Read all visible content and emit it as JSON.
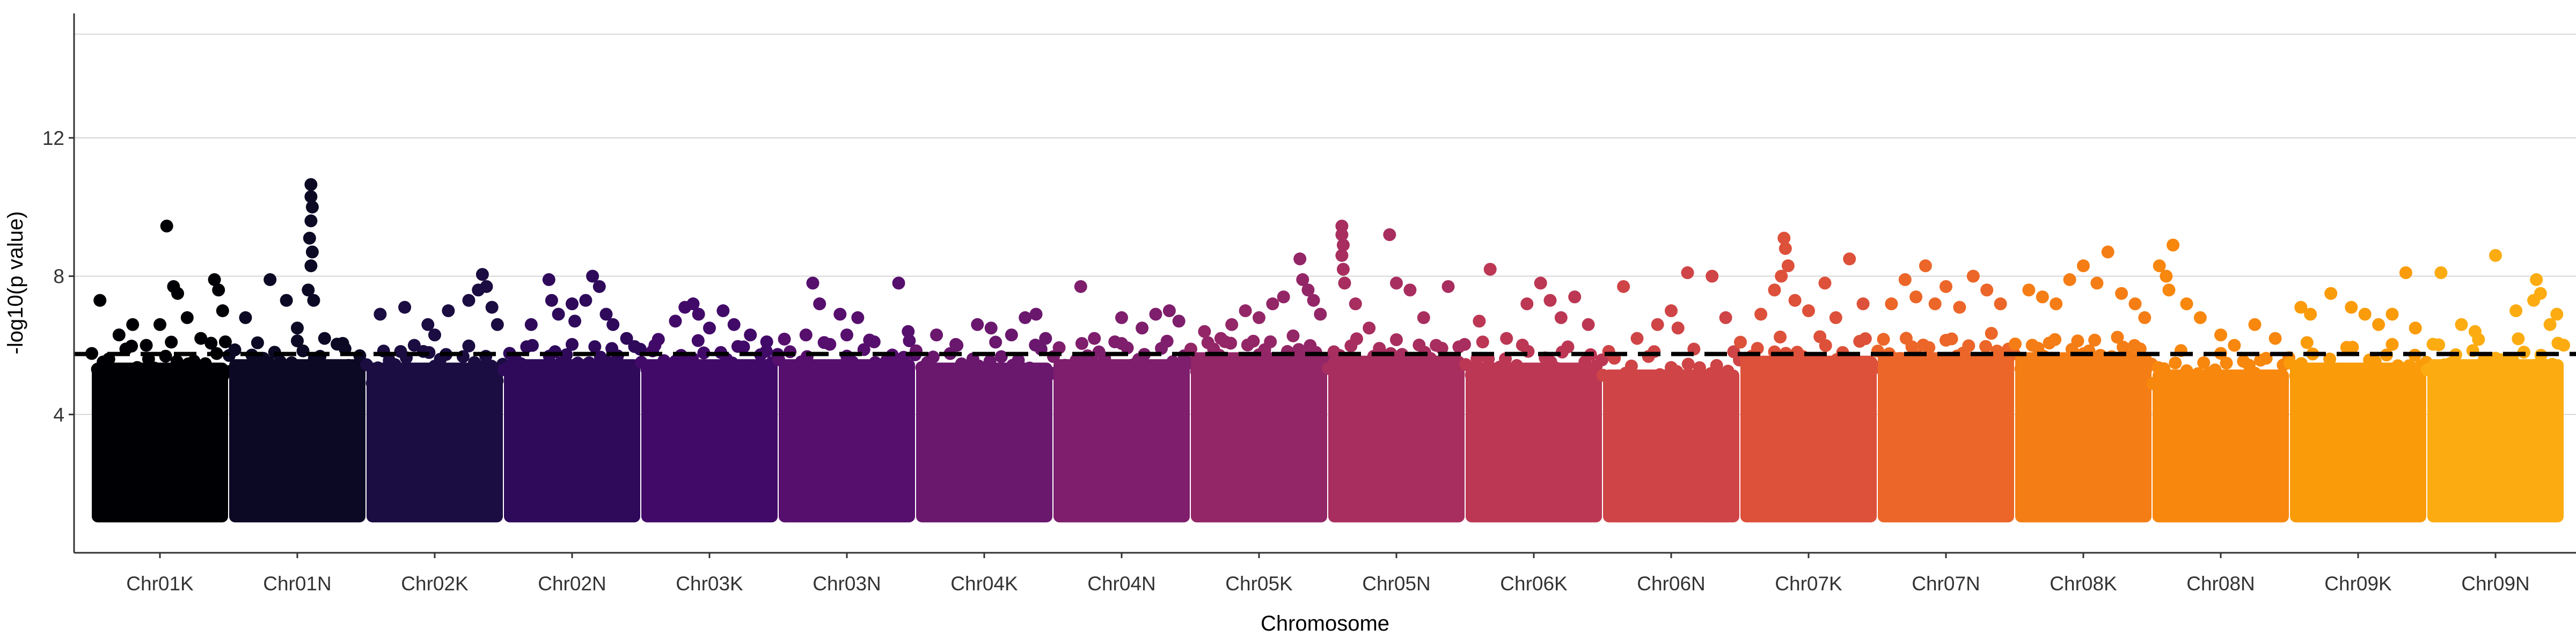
{
  "chart_data": {
    "type": "scatter",
    "subtype": "manhattan",
    "title": "",
    "xlabel": "Chromosome",
    "ylabel": "-log10(p value)",
    "ylim": [
      0,
      15.6
    ],
    "yticks": [
      4,
      8,
      12
    ],
    "threshold": 5.75,
    "grid": "horizontal-major",
    "legend": "none",
    "categories": [
      "Chr01K",
      "Chr01N",
      "Chr02K",
      "Chr02N",
      "Chr03K",
      "Chr03N",
      "Chr04K",
      "Chr04N",
      "Chr05K",
      "Chr05N",
      "Chr06K",
      "Chr06N",
      "Chr07K",
      "Chr07N",
      "Chr08K",
      "Chr08N",
      "Chr09K",
      "Chr09N"
    ],
    "colors": [
      "#000004",
      "#0b0924",
      "#1b0c41",
      "#2f0a5b",
      "#420a68",
      "#560f6d",
      "#6a176e",
      "#7e1e6c",
      "#932667",
      "#a82e5f",
      "#bc3754",
      "#cf4446",
      "#dd513a",
      "#eb6628",
      "#f57d15",
      "#f8870e",
      "#fa9b0a",
      "#fcac11"
    ],
    "series": [
      {
        "name": "Chr01K",
        "baseline_top": 5.5,
        "peak": 9.5,
        "points": [
          [
            0.06,
            7.3
          ],
          [
            0.55,
            9.45
          ],
          [
            0.2,
            6.3
          ],
          [
            0.3,
            6.6
          ],
          [
            0.6,
            7.7
          ],
          [
            0.63,
            7.5
          ],
          [
            0.7,
            6.8
          ],
          [
            0.9,
            7.9
          ],
          [
            0.93,
            7.6
          ],
          [
            0.96,
            7.0
          ],
          [
            0.98,
            6.1
          ],
          [
            0.5,
            6.6
          ],
          [
            0.8,
            6.2
          ],
          [
            0.4,
            6.0
          ]
        ]
      },
      {
        "name": "Chr01N",
        "baseline_top": 5.6,
        "peak": 10.7,
        "points": [
          [
            0.12,
            6.8
          ],
          [
            0.3,
            7.9
          ],
          [
            0.42,
            7.3
          ],
          [
            0.6,
            10.65
          ],
          [
            0.6,
            10.3
          ],
          [
            0.61,
            10.0
          ],
          [
            0.6,
            9.6
          ],
          [
            0.59,
            9.1
          ],
          [
            0.61,
            8.7
          ],
          [
            0.6,
            8.3
          ],
          [
            0.58,
            7.6
          ],
          [
            0.62,
            7.3
          ],
          [
            0.7,
            6.2
          ],
          [
            0.85,
            5.9
          ],
          [
            0.5,
            6.5
          ]
        ]
      },
      {
        "name": "Chr02K",
        "baseline_top": 5.5,
        "peak": 8.1,
        "points": [
          [
            0.1,
            6.9
          ],
          [
            0.28,
            7.1
          ],
          [
            0.45,
            6.6
          ],
          [
            0.6,
            7.0
          ],
          [
            0.75,
            7.3
          ],
          [
            0.82,
            7.6
          ],
          [
            0.85,
            8.05
          ],
          [
            0.88,
            7.7
          ],
          [
            0.92,
            7.1
          ],
          [
            0.96,
            6.6
          ],
          [
            0.5,
            6.3
          ],
          [
            0.35,
            6.0
          ]
        ]
      },
      {
        "name": "Chr02N",
        "baseline_top": 5.6,
        "peak": 8.1,
        "points": [
          [
            0.2,
            6.6
          ],
          [
            0.33,
            7.9
          ],
          [
            0.35,
            7.3
          ],
          [
            0.4,
            6.9
          ],
          [
            0.5,
            7.2
          ],
          [
            0.52,
            6.7
          ],
          [
            0.6,
            7.3
          ],
          [
            0.65,
            8.0
          ],
          [
            0.7,
            7.7
          ],
          [
            0.75,
            6.9
          ],
          [
            0.8,
            6.6
          ],
          [
            0.9,
            6.2
          ]
        ]
      },
      {
        "name": "Chr03K",
        "baseline_top": 5.6,
        "peak": 7.5,
        "points": [
          [
            0.1,
            6.0
          ],
          [
            0.25,
            6.7
          ],
          [
            0.32,
            7.1
          ],
          [
            0.38,
            7.2
          ],
          [
            0.42,
            6.9
          ],
          [
            0.5,
            6.5
          ],
          [
            0.6,
            7.0
          ],
          [
            0.68,
            6.6
          ],
          [
            0.8,
            6.3
          ],
          [
            0.92,
            6.1
          ]
        ]
      },
      {
        "name": "Chr03N",
        "baseline_top": 5.6,
        "peak": 7.8,
        "points": [
          [
            0.25,
            7.8
          ],
          [
            0.3,
            7.2
          ],
          [
            0.45,
            6.9
          ],
          [
            0.5,
            6.3
          ],
          [
            0.58,
            6.8
          ],
          [
            0.7,
            6.1
          ],
          [
            0.88,
            7.8
          ],
          [
            0.95,
            6.4
          ],
          [
            0.2,
            6.3
          ]
        ]
      },
      {
        "name": "Chr04K",
        "baseline_top": 5.5,
        "peak": 7.0,
        "points": [
          [
            0.15,
            6.3
          ],
          [
            0.3,
            6.0
          ],
          [
            0.45,
            6.6
          ],
          [
            0.55,
            6.5
          ],
          [
            0.7,
            6.3
          ],
          [
            0.8,
            6.8
          ],
          [
            0.88,
            6.9
          ],
          [
            0.95,
            6.2
          ]
        ]
      },
      {
        "name": "Chr04N",
        "baseline_top": 5.6,
        "peak": 7.7,
        "points": [
          [
            0.2,
            7.7
          ],
          [
            0.3,
            6.2
          ],
          [
            0.45,
            6.1
          ],
          [
            0.5,
            6.8
          ],
          [
            0.65,
            6.5
          ],
          [
            0.75,
            6.9
          ],
          [
            0.85,
            7.0
          ],
          [
            0.92,
            6.7
          ]
        ]
      },
      {
        "name": "Chr05K",
        "baseline_top": 5.8,
        "peak": 8.6,
        "points": [
          [
            0.1,
            6.4
          ],
          [
            0.22,
            6.2
          ],
          [
            0.3,
            6.6
          ],
          [
            0.4,
            7.0
          ],
          [
            0.5,
            6.8
          ],
          [
            0.6,
            7.2
          ],
          [
            0.68,
            7.4
          ],
          [
            0.8,
            8.5
          ],
          [
            0.82,
            7.9
          ],
          [
            0.86,
            7.6
          ],
          [
            0.9,
            7.3
          ],
          [
            0.95,
            6.9
          ]
        ]
      },
      {
        "name": "Chr05N",
        "baseline_top": 5.7,
        "peak": 9.5,
        "points": [
          [
            0.1,
            9.45
          ],
          [
            0.1,
            9.2
          ],
          [
            0.11,
            8.9
          ],
          [
            0.1,
            8.6
          ],
          [
            0.11,
            8.2
          ],
          [
            0.12,
            7.8
          ],
          [
            0.2,
            7.2
          ],
          [
            0.3,
            6.5
          ],
          [
            0.45,
            9.2
          ],
          [
            0.5,
            7.8
          ],
          [
            0.6,
            7.6
          ],
          [
            0.7,
            6.8
          ],
          [
            0.88,
            7.7
          ]
        ]
      },
      {
        "name": "Chr06K",
        "baseline_top": 5.5,
        "peak": 8.2,
        "points": [
          [
            0.1,
            6.7
          ],
          [
            0.18,
            8.2
          ],
          [
            0.3,
            6.2
          ],
          [
            0.45,
            7.2
          ],
          [
            0.55,
            7.8
          ],
          [
            0.62,
            7.3
          ],
          [
            0.7,
            6.8
          ],
          [
            0.8,
            7.4
          ],
          [
            0.9,
            6.6
          ]
        ]
      },
      {
        "name": "Chr06N",
        "baseline_top": 5.3,
        "peak": 8.1,
        "points": [
          [
            0.15,
            7.7
          ],
          [
            0.25,
            6.2
          ],
          [
            0.4,
            6.6
          ],
          [
            0.5,
            7.0
          ],
          [
            0.55,
            6.5
          ],
          [
            0.62,
            8.1
          ],
          [
            0.8,
            8.0
          ],
          [
            0.9,
            6.8
          ]
        ]
      },
      {
        "name": "Chr07K",
        "baseline_top": 5.7,
        "peak": 9.2,
        "points": [
          [
            0.15,
            6.9
          ],
          [
            0.25,
            7.6
          ],
          [
            0.3,
            8.0
          ],
          [
            0.32,
            9.1
          ],
          [
            0.33,
            8.8
          ],
          [
            0.35,
            8.3
          ],
          [
            0.4,
            7.3
          ],
          [
            0.5,
            7.0
          ],
          [
            0.62,
            7.8
          ],
          [
            0.7,
            6.8
          ],
          [
            0.8,
            8.5
          ],
          [
            0.9,
            7.2
          ]
        ]
      },
      {
        "name": "Chr07N",
        "baseline_top": 5.8,
        "peak": 8.3,
        "points": [
          [
            0.1,
            7.2
          ],
          [
            0.2,
            7.9
          ],
          [
            0.28,
            7.4
          ],
          [
            0.35,
            8.3
          ],
          [
            0.42,
            7.2
          ],
          [
            0.5,
            7.7
          ],
          [
            0.6,
            7.1
          ],
          [
            0.7,
            8.0
          ],
          [
            0.8,
            7.6
          ],
          [
            0.9,
            7.2
          ]
        ]
      },
      {
        "name": "Chr08K",
        "baseline_top": 5.8,
        "peak": 8.7,
        "points": [
          [
            0.1,
            7.6
          ],
          [
            0.2,
            7.4
          ],
          [
            0.3,
            7.2
          ],
          [
            0.4,
            7.9
          ],
          [
            0.5,
            8.3
          ],
          [
            0.6,
            7.8
          ],
          [
            0.68,
            8.7
          ],
          [
            0.78,
            7.5
          ],
          [
            0.88,
            7.2
          ],
          [
            0.95,
            6.8
          ]
        ]
      },
      {
        "name": "Chr08N",
        "baseline_top": 5.3,
        "peak": 8.9,
        "points": [
          [
            0.05,
            8.3
          ],
          [
            0.1,
            8.0
          ],
          [
            0.12,
            7.6
          ],
          [
            0.15,
            8.9
          ],
          [
            0.25,
            7.2
          ],
          [
            0.35,
            6.8
          ],
          [
            0.5,
            6.3
          ],
          [
            0.6,
            6.0
          ],
          [
            0.75,
            6.6
          ],
          [
            0.9,
            6.2
          ]
        ]
      },
      {
        "name": "Chr09K",
        "baseline_top": 5.5,
        "peak": 8.1,
        "points": [
          [
            0.08,
            7.1
          ],
          [
            0.15,
            6.9
          ],
          [
            0.3,
            7.5
          ],
          [
            0.45,
            7.1
          ],
          [
            0.55,
            6.9
          ],
          [
            0.65,
            6.6
          ],
          [
            0.75,
            6.9
          ],
          [
            0.85,
            8.1
          ],
          [
            0.92,
            6.5
          ]
        ]
      },
      {
        "name": "Chr09N",
        "baseline_top": 5.6,
        "peak": 8.6,
        "points": [
          [
            0.1,
            8.1
          ],
          [
            0.25,
            6.6
          ],
          [
            0.35,
            6.4
          ],
          [
            0.5,
            8.6
          ],
          [
            0.65,
            7.0
          ],
          [
            0.78,
            7.3
          ],
          [
            0.8,
            7.9
          ],
          [
            0.83,
            7.5
          ],
          [
            0.9,
            6.6
          ],
          [
            0.95,
            6.9
          ]
        ]
      }
    ]
  }
}
